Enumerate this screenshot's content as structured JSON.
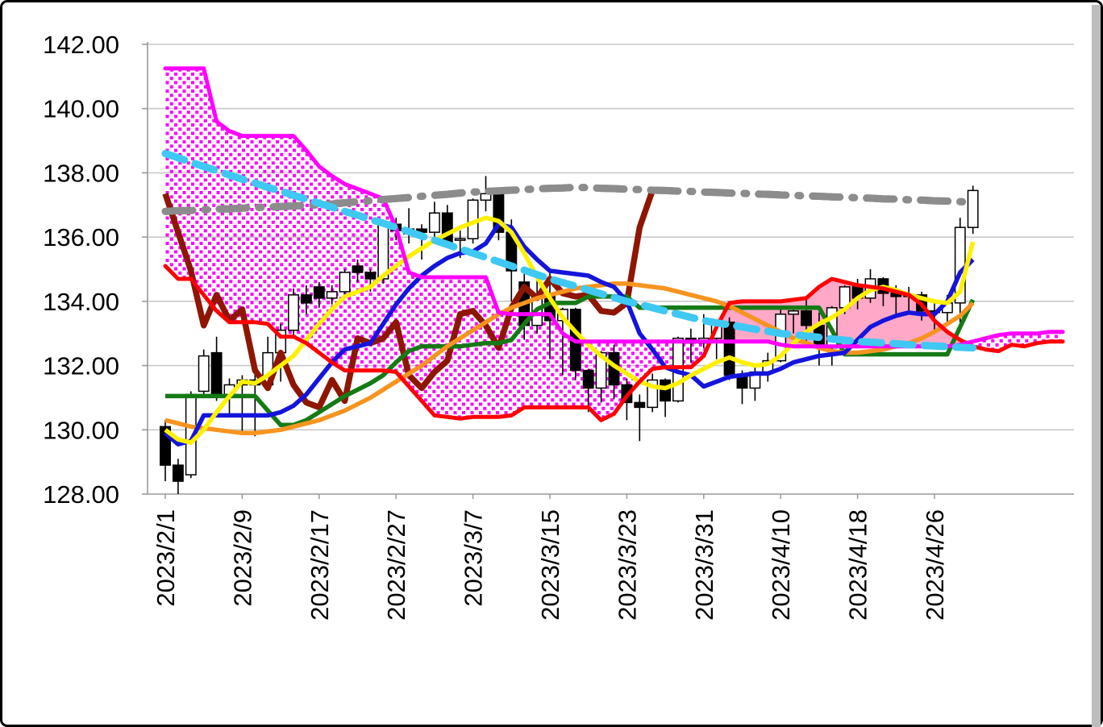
{
  "chart_data": {
    "type": "candlestick",
    "subtype": "ichimoku-with-moving-averages",
    "title": "",
    "grid": "horizontal-only",
    "legend": "none",
    "y_axis": {
      "min": 128,
      "max": 142,
      "step": 2,
      "tick_labels": [
        "128.00",
        "130.00",
        "132.00",
        "134.00",
        "136.00",
        "138.00",
        "140.00",
        "142.00"
      ]
    },
    "x_axis": {
      "bar_count": 64,
      "extension_bars": 7,
      "tick_indices": [
        0,
        6,
        12,
        18,
        24,
        30,
        36,
        42,
        48,
        54,
        60
      ],
      "tick_labels": [
        "2023/2/1",
        "2023/2/9",
        "2023/2/17",
        "2023/2/27",
        "2023/3/7",
        "2023/3/15",
        "2023/3/23",
        "2023/3/31",
        "2023/4/10",
        "2023/4/18",
        "2023/4/26"
      ]
    },
    "candles": {
      "bull_fill": "#ffffff",
      "bear_fill": "#000000",
      "stroke": "#000000",
      "open": [
        130.1,
        128.9,
        128.6,
        131.2,
        132.4,
        131.1,
        131.4,
        131.55,
        131.4,
        132.4,
        133.1,
        134.2,
        134.45,
        134.1,
        134.3,
        135.1,
        134.9,
        134.7,
        136.4,
        136.1,
        136.25,
        136.15,
        136.75,
        135.9,
        135.95,
        137.15,
        137.35,
        136.15,
        134.6,
        133.25,
        134.2,
        133.4,
        133.75,
        131.85,
        131.3,
        132.4,
        131.4,
        130.85,
        130.7,
        131.55,
        130.9,
        132.85,
        132.7,
        132.85,
        133.35,
        131.7,
        131.3,
        131.8,
        132.15,
        133.6,
        133.7,
        133.25,
        132.55,
        133.8,
        134.45,
        134.1,
        134.7,
        134.25,
        134.15,
        134.2,
        133.7,
        133.65,
        133.95,
        136.3
      ],
      "high": [
        130.3,
        129.1,
        131.2,
        132.5,
        132.9,
        131.6,
        131.7,
        131.9,
        132.9,
        133.3,
        134.4,
        134.5,
        134.6,
        134.5,
        135.0,
        135.3,
        135.0,
        136.55,
        136.6,
        136.9,
        136.4,
        137.1,
        137.0,
        136.2,
        137.2,
        137.9,
        137.5,
        136.55,
        135.0,
        134.9,
        134.9,
        133.8,
        133.8,
        131.9,
        132.45,
        132.65,
        131.6,
        131.1,
        131.75,
        131.6,
        132.9,
        133.15,
        133.6,
        133.35,
        133.5,
        131.85,
        131.95,
        132.4,
        133.85,
        133.75,
        134.05,
        133.65,
        133.85,
        134.5,
        134.7,
        135.0,
        134.75,
        134.5,
        134.45,
        134.3,
        133.95,
        134.2,
        136.6,
        137.6
      ],
      "low": [
        128.4,
        128.0,
        128.5,
        131.0,
        130.9,
        130.4,
        129.9,
        129.8,
        131.3,
        131.5,
        132.9,
        133.6,
        133.8,
        133.9,
        134.1,
        134.6,
        134.3,
        134.55,
        135.9,
        135.8,
        135.3,
        135.9,
        135.8,
        135.35,
        135.8,
        136.8,
        135.9,
        134.0,
        132.8,
        133.0,
        132.2,
        131.7,
        131.55,
        130.55,
        130.85,
        130.95,
        130.3,
        129.65,
        130.55,
        130.4,
        130.85,
        132.1,
        132.55,
        132.2,
        131.55,
        130.8,
        130.9,
        131.5,
        132.1,
        133.0,
        132.75,
        132.0,
        132.0,
        133.6,
        133.75,
        133.95,
        133.85,
        133.55,
        133.6,
        133.4,
        133.0,
        133.3,
        133.35,
        136.1
      ],
      "close": [
        128.9,
        128.4,
        131.1,
        132.3,
        131.1,
        131.4,
        131.55,
        131.4,
        132.4,
        133.1,
        134.2,
        133.95,
        134.1,
        134.3,
        134.9,
        134.9,
        134.7,
        136.45,
        136.2,
        136.25,
        136.15,
        136.75,
        135.85,
        135.95,
        137.15,
        137.35,
        136.15,
        134.95,
        133.25,
        134.2,
        133.4,
        133.75,
        131.85,
        131.3,
        132.4,
        131.4,
        130.85,
        130.7,
        131.55,
        130.9,
        132.85,
        132.7,
        132.85,
        133.35,
        131.7,
        131.3,
        131.8,
        132.15,
        133.6,
        133.7,
        133.25,
        132.55,
        133.8,
        134.45,
        134.1,
        134.7,
        134.25,
        134.15,
        134.2,
        133.7,
        133.65,
        133.95,
        136.3,
        137.45
      ]
    },
    "cloud": {
      "bull_fill_color": "#ffa8c8",
      "bear_fill_pattern": "magenta-dots",
      "span_a": {
        "color": "#ff0000",
        "width": 5,
        "values": [
          135.1,
          134.7,
          134.7,
          134.2,
          133.7,
          133.35,
          133.35,
          133.35,
          133.3,
          132.9,
          132.9,
          132.7,
          132.4,
          132.1,
          131.85,
          131.85,
          131.85,
          131.85,
          131.8,
          131.35,
          130.9,
          130.45,
          130.4,
          130.35,
          130.4,
          130.4,
          130.4,
          130.45,
          130.7,
          130.7,
          130.7,
          130.7,
          130.7,
          130.7,
          130.3,
          130.5,
          131.05,
          131.5,
          131.9,
          131.95,
          131.95,
          131.95,
          132.3,
          133.2,
          133.95,
          134.0,
          134.0,
          134.0,
          134.0,
          134.05,
          134.1,
          134.45,
          134.7,
          134.6,
          134.5,
          134.45,
          134.4,
          134.3,
          134.2,
          133.9,
          133.4,
          133.05,
          132.8,
          132.6,
          132.5,
          132.45,
          132.65,
          132.6,
          132.7,
          132.75,
          132.75
        ]
      },
      "span_b": {
        "color": "#ff00ff",
        "width": 5,
        "values": [
          141.25,
          141.25,
          141.25,
          141.25,
          139.6,
          139.3,
          139.15,
          139.15,
          139.15,
          139.15,
          139.15,
          138.7,
          138.2,
          137.9,
          137.65,
          137.5,
          137.35,
          137.2,
          136.3,
          134.9,
          134.75,
          134.75,
          134.75,
          134.75,
          134.75,
          134.75,
          133.65,
          133.6,
          133.6,
          133.6,
          133.6,
          133.0,
          132.75,
          132.75,
          132.75,
          132.75,
          132.75,
          132.75,
          132.75,
          132.75,
          132.75,
          132.75,
          132.75,
          132.75,
          132.75,
          132.75,
          132.75,
          132.75,
          132.65,
          132.6,
          132.6,
          132.6,
          132.6,
          132.6,
          132.6,
          132.6,
          132.6,
          132.6,
          132.6,
          132.6,
          132.6,
          132.6,
          132.65,
          132.75,
          132.85,
          132.95,
          133.0,
          133.0,
          133.0,
          133.05,
          133.05
        ]
      }
    },
    "lines": [
      {
        "id": "ma-200-gray-dashdot",
        "color": "#8c8c8c",
        "width": 9,
        "dash": "34 15 3 15",
        "cap": "round",
        "values": [
          136.8,
          136.82,
          136.83,
          136.85,
          136.87,
          136.88,
          136.9,
          136.92,
          136.93,
          136.95,
          136.97,
          136.98,
          137.0,
          137.03,
          137.07,
          137.1,
          137.13,
          137.17,
          137.2,
          137.23,
          137.27,
          137.3,
          137.33,
          137.37,
          137.4,
          137.42,
          137.44,
          137.46,
          137.48,
          137.5,
          137.52,
          137.53,
          137.55,
          137.54,
          137.52,
          137.51,
          137.49,
          137.48,
          137.46,
          137.45,
          137.43,
          137.42,
          137.4,
          137.39,
          137.37,
          137.36,
          137.34,
          137.33,
          137.31,
          137.3,
          137.28,
          137.27,
          137.25,
          137.24,
          137.22,
          137.21,
          137.19,
          137.18,
          137.16,
          137.15,
          137.13,
          137.12,
          137.1,
          137.1
        ]
      },
      {
        "id": "ma-75-cyan-dashed",
        "color": "#3fc8f4",
        "width": 9,
        "dash": "25 14",
        "cap": "round",
        "values": [
          138.6,
          138.47,
          138.33,
          138.2,
          138.07,
          137.93,
          137.8,
          137.68,
          137.55,
          137.43,
          137.3,
          137.18,
          137.05,
          136.93,
          136.8,
          136.68,
          136.55,
          136.43,
          136.3,
          136.17,
          136.03,
          135.9,
          135.77,
          135.63,
          135.5,
          135.37,
          135.23,
          135.1,
          134.97,
          134.83,
          134.7,
          134.58,
          134.47,
          134.35,
          134.23,
          134.12,
          134.0,
          133.9,
          133.8,
          133.7,
          133.6,
          133.5,
          133.4,
          133.33,
          133.27,
          133.2,
          133.13,
          133.07,
          133.0,
          132.96,
          132.92,
          132.88,
          132.83,
          132.79,
          132.75,
          132.73,
          132.7,
          132.68,
          132.65,
          132.63,
          132.61,
          132.59,
          132.57,
          132.55
        ]
      },
      {
        "id": "chikou-span-darkred",
        "color": "#8e1600",
        "width": 7.5,
        "cap": "butt",
        "values": [
          137.35,
          136.15,
          134.95,
          133.25,
          134.2,
          133.4,
          133.75,
          131.85,
          131.3,
          132.4,
          131.4,
          130.85,
          130.7,
          131.55,
          130.9,
          132.85,
          132.7,
          132.85,
          133.35,
          131.7,
          131.3,
          131.8,
          132.15,
          133.6,
          133.7,
          133.25,
          132.55,
          133.8,
          134.45,
          134.1,
          134.7,
          134.25,
          134.15,
          134.2,
          133.7,
          133.65,
          133.95,
          136.3,
          137.45
        ]
      },
      {
        "id": "kijun-green",
        "color": "#157a15",
        "width": 5.5,
        "cap": "butt",
        "values": [
          131.05,
          131.05,
          131.05,
          131.05,
          131.05,
          131.05,
          131.05,
          131.05,
          130.6,
          130.15,
          130.15,
          130.3,
          130.55,
          130.8,
          131.05,
          131.25,
          131.45,
          131.7,
          132.1,
          132.45,
          132.6,
          132.6,
          132.6,
          132.6,
          132.65,
          132.7,
          132.7,
          132.8,
          133.3,
          133.75,
          133.95,
          133.95,
          133.95,
          134.15,
          134.15,
          134.15,
          134.15,
          133.8,
          133.8,
          133.8,
          133.8,
          133.8,
          133.8,
          133.8,
          133.8,
          133.8,
          133.8,
          133.8,
          133.8,
          133.8,
          133.8,
          133.8,
          133.1,
          132.35,
          132.35,
          132.35,
          132.35,
          132.35,
          132.35,
          132.35,
          132.35,
          132.35,
          133.2,
          134.05
        ]
      },
      {
        "id": "ma-25-orange",
        "color": "#f79420",
        "width": 5.5,
        "cap": "butt",
        "values": [
          130.3,
          130.2,
          130.1,
          130.05,
          130.0,
          129.95,
          129.9,
          129.9,
          129.95,
          130.0,
          130.1,
          130.2,
          130.3,
          130.45,
          130.6,
          130.8,
          131.0,
          131.25,
          131.5,
          131.75,
          132.0,
          132.3,
          132.6,
          132.85,
          133.1,
          133.35,
          133.6,
          133.8,
          133.95,
          134.1,
          134.2,
          134.3,
          134.4,
          134.45,
          134.5,
          134.55,
          134.55,
          134.5,
          134.45,
          134.4,
          134.3,
          134.2,
          134.1,
          134.0,
          133.85,
          133.65,
          133.45,
          133.25,
          133.05,
          132.85,
          132.7,
          132.55,
          132.45,
          132.4,
          132.4,
          132.45,
          132.5,
          132.6,
          132.7,
          132.85,
          133.05,
          133.3,
          133.55,
          133.95
        ]
      },
      {
        "id": "tenkan-blue",
        "color": "#1414dc",
        "width": 5.5,
        "cap": "butt",
        "values": [
          129.9,
          129.55,
          129.65,
          130.45,
          130.45,
          130.45,
          130.45,
          130.45,
          130.45,
          130.55,
          130.75,
          131.1,
          131.6,
          132.1,
          132.5,
          132.6,
          132.7,
          133.3,
          133.9,
          134.4,
          134.8,
          135.1,
          135.35,
          135.5,
          135.55,
          135.8,
          136.4,
          136.3,
          135.7,
          135.3,
          134.95,
          134.9,
          134.85,
          134.8,
          134.6,
          134.45,
          134.0,
          133.0,
          132.5,
          131.95,
          131.8,
          131.7,
          131.35,
          131.5,
          131.65,
          131.7,
          131.75,
          131.75,
          131.9,
          132.1,
          132.2,
          132.3,
          132.35,
          132.4,
          132.8,
          133.2,
          133.4,
          133.55,
          133.65,
          133.6,
          133.6,
          134.0,
          134.9,
          135.3
        ]
      },
      {
        "id": "ma-5-yellow",
        "color": "#fff000",
        "width": 5.5,
        "cap": "butt",
        "values": [
          130.0,
          129.7,
          129.6,
          130.0,
          130.55,
          131.05,
          131.5,
          131.45,
          131.7,
          132.0,
          132.3,
          132.8,
          133.3,
          133.75,
          134.15,
          134.3,
          134.45,
          134.8,
          135.1,
          135.4,
          135.65,
          135.9,
          136.1,
          136.3,
          136.45,
          136.6,
          136.5,
          136.15,
          135.5,
          134.75,
          134.1,
          133.5,
          133.05,
          132.65,
          132.3,
          132.0,
          131.75,
          131.5,
          131.35,
          131.3,
          131.45,
          131.7,
          131.9,
          132.1,
          132.25,
          132.1,
          132.0,
          132.05,
          132.3,
          132.7,
          133.05,
          133.3,
          133.5,
          133.75,
          134.1,
          134.35,
          134.45,
          134.35,
          134.2,
          134.1,
          134.0,
          133.95,
          134.3,
          135.85
        ]
      }
    ]
  },
  "window": {
    "background": "#ffffff",
    "border_color": "#000000",
    "gridline_color": "#c9c9c9",
    "axis_color": "#9a9a9a",
    "label_color": "#000000",
    "edge_strip_color": "#bdbdbd"
  }
}
